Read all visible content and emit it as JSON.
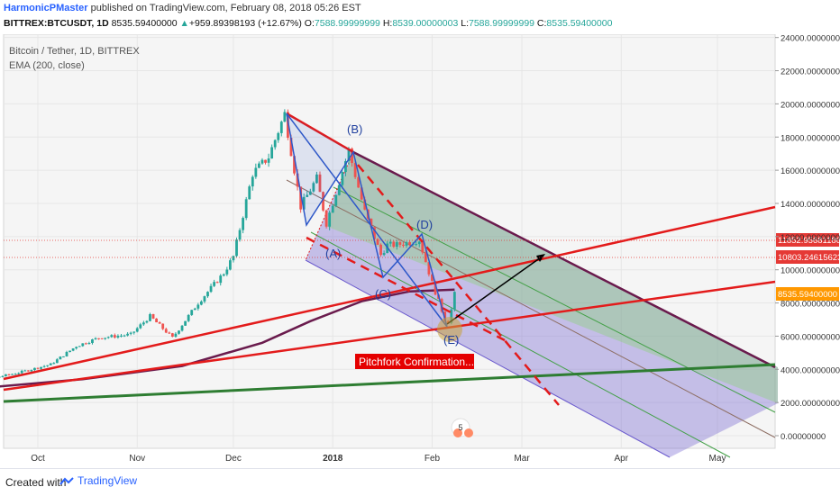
{
  "header": {
    "author": "HarmonicPMaster",
    "published": "published on TradingView.com, February 08, 2018 05:26 EST",
    "symbol": "BITTREX:BTCUSDT, 1D",
    "last": "8535.59400000",
    "arrow": "▲",
    "change": "+959.89398193 (+12.67%)",
    "o_label": "O:",
    "o": "7588.99999999",
    "h_label": "H:",
    "h": "8539.00000003",
    "l_label": "L:",
    "l": "7588.99999999",
    "c_label": "C:",
    "c": "8535.59400000"
  },
  "legend": {
    "title": "Bitcoin / Tether, 1D, BITTREX",
    "indicator": "EMA (200, close)"
  },
  "footer": {
    "created": "Created with",
    "brand": "TradingView",
    "logo_icon": "tradingview-logo-icon"
  },
  "chart_data": {
    "type": "candlestick",
    "title": "Bitcoin / Tether, 1D, BITTREX",
    "ylim": [
      -500,
      24000
    ],
    "y_ticks": [
      0,
      2000,
      4000,
      6000,
      8000,
      10000,
      12000,
      14000,
      16000,
      18000,
      20000,
      22000,
      24000
    ],
    "y_tick_labels": [
      "0.00000000",
      "2000.00000000",
      "4000.00000000",
      "6000.00000000",
      "8000.00000000",
      "10000.00000000",
      "12000.00000000",
      "14000.00000000",
      "16000.00000000",
      "18000.00000000",
      "20000.00000000",
      "22000.00000000",
      "24000.00000000"
    ],
    "x_ticks": [
      {
        "label": "Oct",
        "date": "2017-10-01"
      },
      {
        "label": "Nov",
        "date": "2017-11-01"
      },
      {
        "label": "Dec",
        "date": "2017-12-01"
      },
      {
        "label": "2018",
        "date": "2018-01-01"
      },
      {
        "label": "Feb",
        "date": "2018-02-01"
      },
      {
        "label": "Mar",
        "date": "2018-03-01"
      },
      {
        "label": "Apr",
        "date": "2018-04-01"
      },
      {
        "label": "May",
        "date": "2018-05-01"
      }
    ],
    "price_path": [
      [
        "2017-09-15",
        3400
      ],
      [
        "2017-09-25",
        3800
      ],
      [
        "2017-10-05",
        4300
      ],
      [
        "2017-10-13",
        5400
      ],
      [
        "2017-10-20",
        5900
      ],
      [
        "2017-10-30",
        6100
      ],
      [
        "2017-11-05",
        7200
      ],
      [
        "2017-11-12",
        5900
      ],
      [
        "2017-11-20",
        8000
      ],
      [
        "2017-11-28",
        9800
      ],
      [
        "2017-12-01",
        10800
      ],
      [
        "2017-12-07",
        15800
      ],
      [
        "2017-12-12",
        16800
      ],
      [
        "2017-12-17",
        19400
      ],
      [
        "2017-12-22",
        13800
      ],
      [
        "2017-12-27",
        15500
      ],
      [
        "2017-12-30",
        12800
      ],
      [
        "2018-01-06",
        17200
      ],
      [
        "2018-01-11",
        13500
      ],
      [
        "2018-01-16",
        10900
      ],
      [
        "2018-01-18",
        11500
      ],
      [
        "2018-01-21",
        11500
      ],
      [
        "2018-01-28",
        11800
      ],
      [
        "2018-02-01",
        9200
      ],
      [
        "2018-02-05",
        7000
      ],
      [
        "2018-02-06",
        6900
      ],
      [
        "2018-02-07",
        7600
      ],
      [
        "2018-02-08",
        8535
      ]
    ],
    "ema200": [
      [
        "2017-09-15",
        2900
      ],
      [
        "2017-10-15",
        3400
      ],
      [
        "2017-11-15",
        4200
      ],
      [
        "2017-12-10",
        5600
      ],
      [
        "2017-12-25",
        6900
      ],
      [
        "2018-01-10",
        8100
      ],
      [
        "2018-01-25",
        8700
      ],
      [
        "2018-02-08",
        8800
      ]
    ],
    "pattern_points": [
      {
        "label": "(A)",
        "date": "2017-12-30",
        "value": 12000
      },
      {
        "label": "(B)",
        "date": "2018-01-06",
        "value": 17200
      },
      {
        "label": "(C)",
        "date": "2018-01-16",
        "value": 9500
      },
      {
        "label": "(D)",
        "date": "2018-01-28",
        "value": 11800
      },
      {
        "label": "(E)",
        "date": "2018-02-06",
        "value": 6900
      }
    ],
    "price_labels": [
      {
        "value": 11852.95681186,
        "text": "11852.95681186",
        "color": "#e53935"
      },
      {
        "value": 10803.24615623,
        "text": "10803.24615623",
        "color": "#e53935"
      },
      {
        "value": 8535.594,
        "text": "8535.59400000",
        "color": "#ff9800"
      }
    ],
    "annotation": "Pitchfork Confirmation...",
    "event_badge": "5",
    "colors": {
      "up": "#26a69a",
      "down": "#ef5350",
      "ema": "#6a1b4d",
      "trend": "#e31b1b",
      "support": "#2e7d32",
      "fork_outer": "#6a5acd"
    }
  }
}
